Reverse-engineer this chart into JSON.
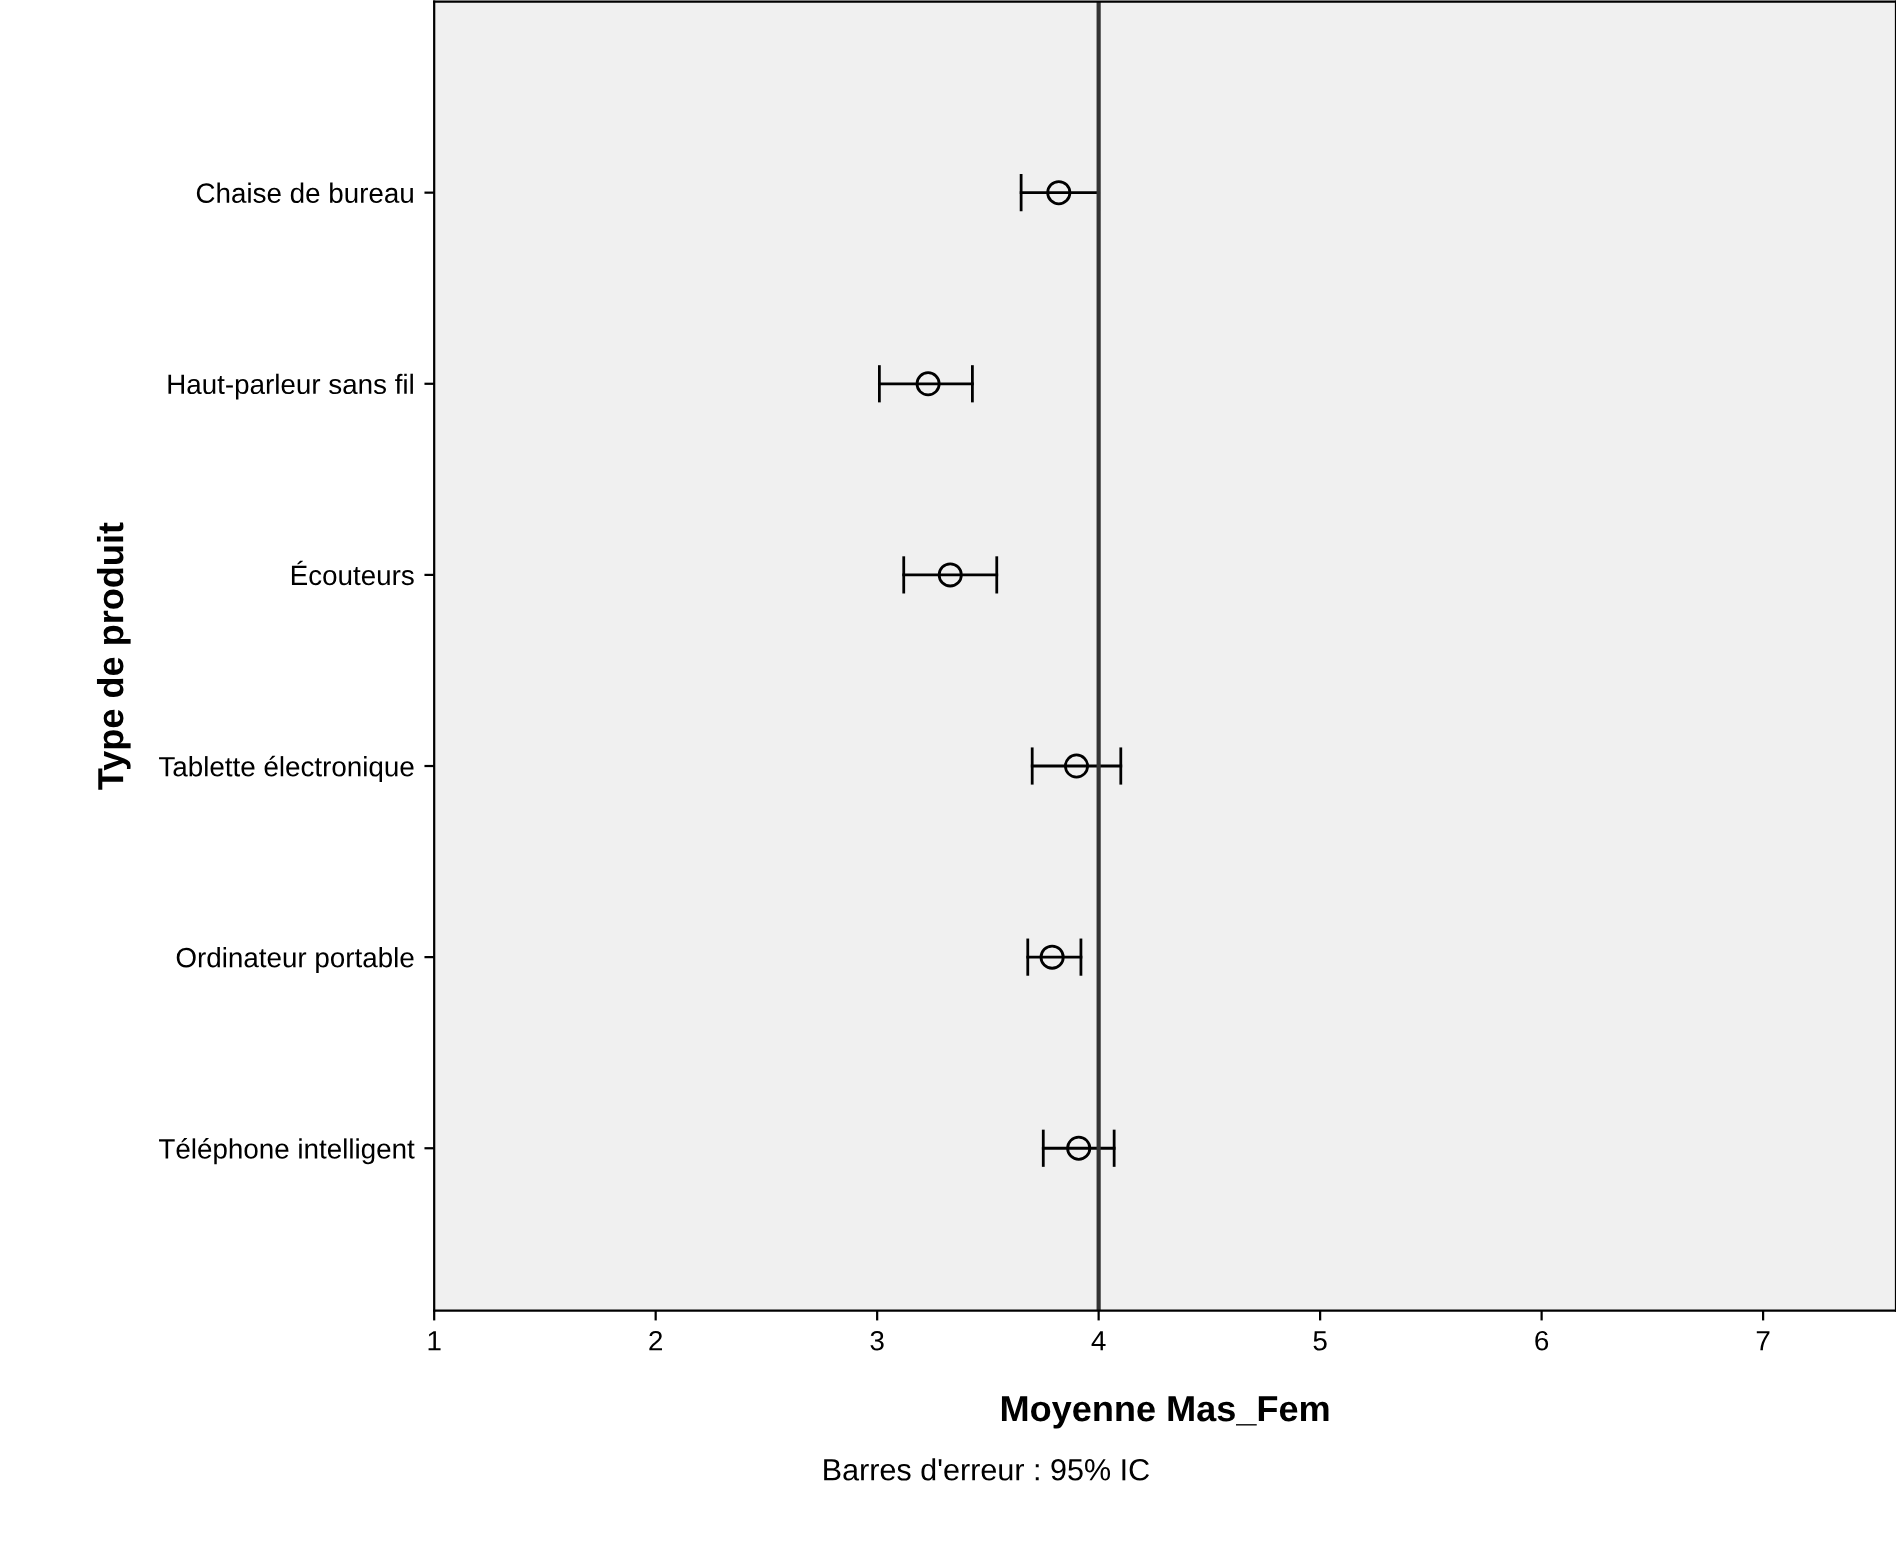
{
  "chart_data": {
    "type": "scatter",
    "orientation": "horizontal",
    "ylabel": "Type de produit",
    "xlabel": "Moyenne Mas_Fem",
    "categories": [
      "Chaise de bureau",
      "Haut-parleur sans fil",
      "Écouteurs",
      "Tablette électronique",
      "Ordinateur portable",
      "Téléphone intelligent"
    ],
    "values": [
      3.82,
      3.23,
      3.33,
      3.9,
      3.79,
      3.91
    ],
    "errors": [
      [
        3.65,
        4.0
      ],
      [
        3.01,
        3.43
      ],
      [
        3.12,
        3.54
      ],
      [
        3.7,
        4.1
      ],
      [
        3.68,
        3.92
      ],
      [
        3.75,
        4.07
      ]
    ],
    "color": "#000000",
    "marker": "circle",
    "xlim": [
      1,
      7.6
    ],
    "xticks": [
      1,
      2,
      3,
      4,
      5,
      6,
      7
    ],
    "ref_lines": [
      {
        "axis": "x",
        "value": 4,
        "color": "#333333"
      }
    ],
    "annotations": [
      "Barres d'erreur : 95% IC"
    ],
    "grid": false
  }
}
